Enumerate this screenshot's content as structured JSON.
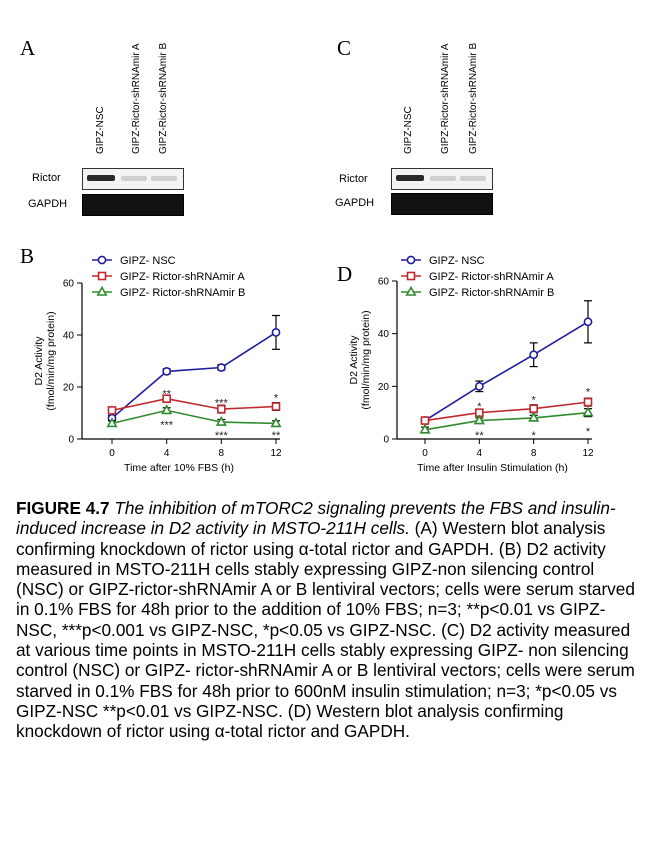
{
  "panels": {
    "a": "A",
    "b": "B",
    "c": "C",
    "d": "D"
  },
  "blots": [
    {
      "lanes": [
        "GIPZ-NSC",
        "GIPZ-Rictor-shRNAmir A",
        "GIPZ-Rictor-shRNAmir B"
      ],
      "rows": [
        "Rictor",
        "GAPDH"
      ],
      "rictor_intensity": [
        0.85,
        0.12,
        0.12
      ]
    },
    {
      "lanes": [
        "GIPZ-NSC",
        "GIPZ-Rictor-shRNAmir A",
        "GIPZ-Rictor-shRNAmir B"
      ],
      "rows": [
        "Rictor",
        "GAPDH"
      ],
      "rictor_intensity": [
        0.85,
        0.12,
        0.12
      ]
    }
  ],
  "chart_data": [
    {
      "type": "line",
      "panel": "B",
      "xlabel": "Time after 10% FBS (h)",
      "ylabel": "D2 Activity",
      "ylabel2": "(fmol/min/mg protein)",
      "x": [
        0,
        4,
        8,
        12
      ],
      "ylim": [
        0,
        60
      ],
      "yticks": [
        0,
        20,
        40,
        60
      ],
      "legend_position": "top-left",
      "series": [
        {
          "name": "GIPZ- NSC",
          "marker": "circle",
          "color": "#1f1f9e",
          "values": [
            8,
            26,
            27.5,
            41
          ],
          "errors": [
            1,
            1,
            1,
            6.5
          ]
        },
        {
          "name": "GIPZ- Rictor-shRNAmir A",
          "marker": "square",
          "color": "#c0282d",
          "values": [
            11,
            15.5,
            11.5,
            12.5
          ],
          "errors": [
            1,
            1,
            1.5,
            1.5
          ]
        },
        {
          "name": "GIPZ- Rictor-shRNAmir B",
          "marker": "triangle",
          "color": "#2e8b2e",
          "values": [
            6,
            11,
            6.5,
            6
          ],
          "errors": [
            1,
            1,
            1,
            1
          ]
        }
      ],
      "annotations": [
        {
          "x": 4,
          "y": 17.5,
          "text": "**"
        },
        {
          "x": 8,
          "y": 14,
          "text": "***"
        },
        {
          "x": 12,
          "y": 16,
          "text": "*"
        },
        {
          "x": 4,
          "y": 5.5,
          "text": "***"
        },
        {
          "x": 8,
          "y": 1.5,
          "text": "***"
        },
        {
          "x": 12,
          "y": 1.5,
          "text": "**"
        }
      ]
    },
    {
      "type": "line",
      "panel": "D",
      "xlabel": "Time after Insulin Stimulation (h)",
      "ylabel": "D2 Activity",
      "ylabel2": "(fmol/min/mg protein)",
      "x": [
        0,
        4,
        8,
        12
      ],
      "ylim": [
        0,
        60
      ],
      "yticks": [
        0,
        20,
        40,
        60
      ],
      "legend_position": "top-left",
      "series": [
        {
          "name": "GIPZ- NSC",
          "marker": "circle",
          "color": "#1f1f9e",
          "values": [
            7,
            20,
            32,
            44.5
          ],
          "errors": [
            1,
            2,
            4.5,
            8
          ]
        },
        {
          "name": "GIPZ- Rictor-shRNAmir A",
          "marker": "square",
          "color": "#c0282d",
          "values": [
            7,
            10,
            11.5,
            14
          ],
          "errors": [
            1,
            1,
            1.5,
            1.5
          ]
        },
        {
          "name": "GIPZ- Rictor-shRNAmir B",
          "marker": "triangle",
          "color": "#2e8b2e",
          "values": [
            3.5,
            7,
            8,
            10
          ],
          "errors": [
            1,
            1,
            1,
            1.5
          ]
        }
      ],
      "annotations": [
        {
          "x": 4,
          "y": 12.5,
          "text": "*"
        },
        {
          "x": 8,
          "y": 15,
          "text": "*"
        },
        {
          "x": 12,
          "y": 18,
          "text": "*"
        },
        {
          "x": 4,
          "y": 1.5,
          "text": "**"
        },
        {
          "x": 8,
          "y": 1.5,
          "text": "*"
        },
        {
          "x": 12,
          "y": 3,
          "text": "*"
        }
      ]
    }
  ],
  "caption": {
    "label": "FIGURE 4.7",
    "title": "The inhibition of mTORC2 signaling prevents the FBS and insulin-induced increase in D2 activity in MSTO-211H cells.",
    "body": "(A) Western blot analysis confirming knockdown of rictor using α-total rictor and GAPDH. (B) D2 activity measured in MSTO-211H cells stably expressing GIPZ-non silencing control (NSC) or GIPZ-rictor-shRNAmir A or B lentiviral vectors; cells were serum starved in 0.1% FBS for 48h prior to the addition of 10% FBS; n=3; **p<0.01 vs GIPZ-NSC, ***p<0.001 vs GIPZ-NSC, *p<0.05 vs GIPZ-NSC. (C) D2 activity measured at various time points in MSTO-211H cells stably expressing GIPZ- non silencing control (NSC) or GIPZ- rictor-shRNAmir A or B lentiviral vectors; cells were serum starved in 0.1% FBS for 48h prior to 600nM insulin stimulation; n=3; *p<0.05 vs GIPZ-NSC **p<0.01 vs GIPZ-NSC. (D) Western blot analysis confirming knockdown of rictor using α-total rictor and GAPDH."
  }
}
